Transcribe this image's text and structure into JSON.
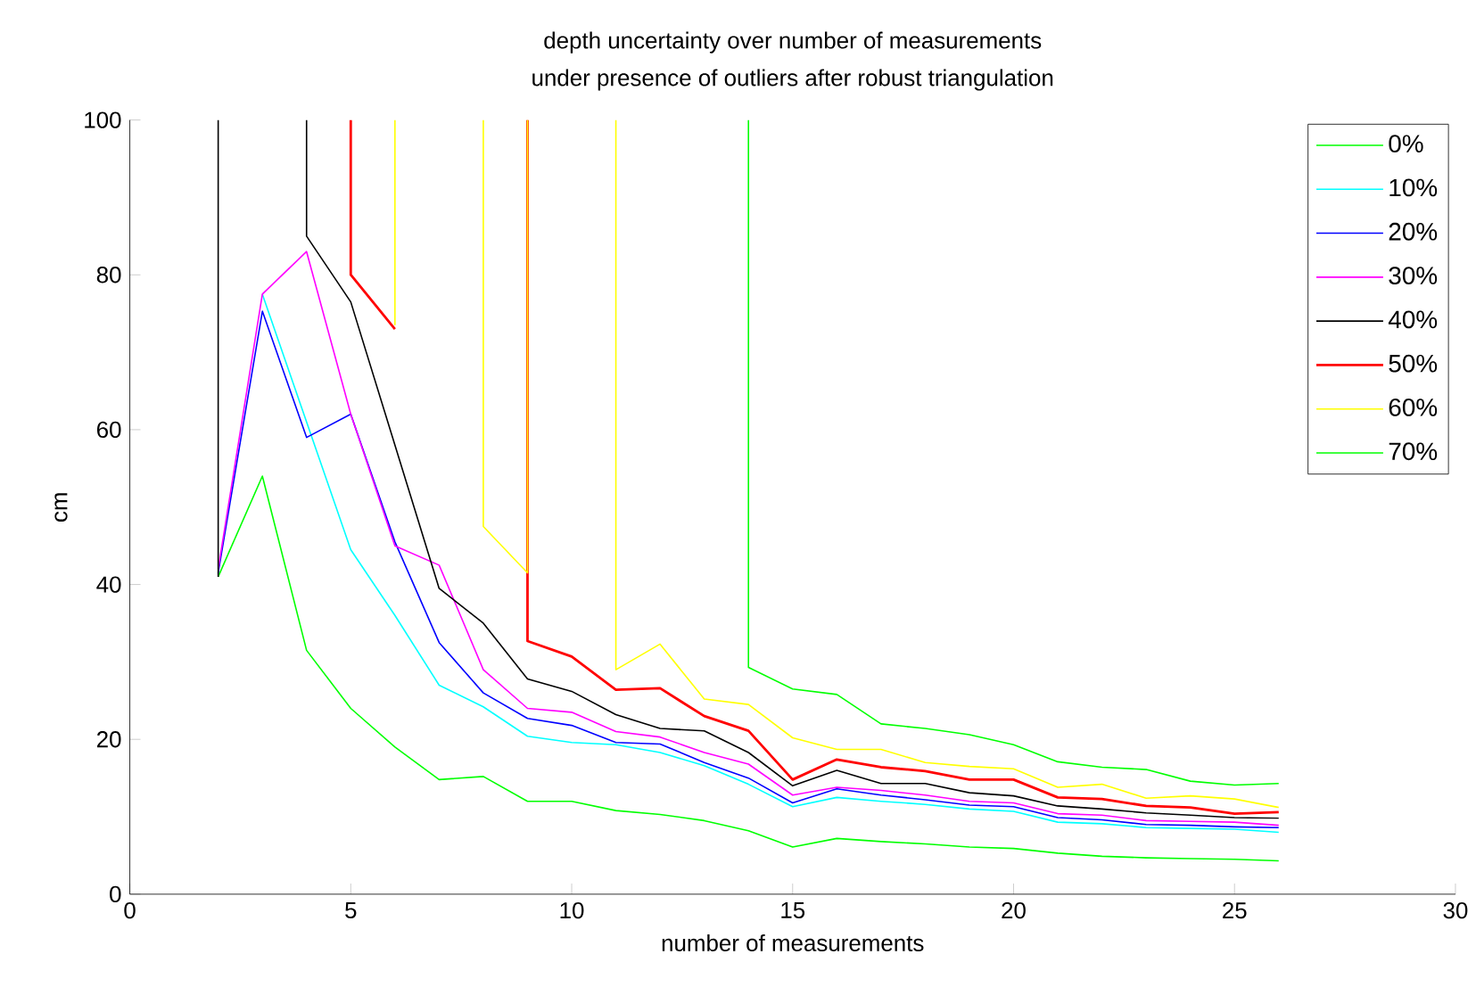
{
  "chart_data": {
    "type": "line",
    "title": "depth uncertainty over number of measurements",
    "subtitle": "under presence of outliers after robust triangulation",
    "xlabel": "number of measurements",
    "ylabel": "cm",
    "xlim": [
      0,
      30
    ],
    "ylim": [
      0,
      100
    ],
    "xticks": [
      0,
      5,
      10,
      15,
      20,
      25,
      30
    ],
    "yticks": [
      0,
      20,
      40,
      60,
      80,
      100
    ],
    "legend": "top right",
    "series": [
      {
        "name": "0%",
        "color": "#00ff00",
        "x": [
          2,
          3,
          4,
          5,
          6,
          7,
          8,
          9,
          10,
          11,
          12,
          13,
          14,
          15,
          16,
          17,
          18,
          19,
          20,
          21,
          22,
          23,
          24,
          25,
          26
        ],
        "values": [
          41,
          54,
          31.5,
          24,
          19,
          14.8,
          15.2,
          12,
          12,
          10.8,
          10.3,
          9.5,
          8.2,
          6.1,
          7.2,
          6.8,
          6.5,
          6.1,
          5.9,
          5.3,
          4.9,
          4.7,
          4.6,
          4.5,
          4.3
        ]
      },
      {
        "name": "10%",
        "color": "#00ffff",
        "x": [
          3,
          4,
          5,
          6,
          7,
          8,
          9,
          10,
          11,
          12,
          13,
          14,
          15,
          16,
          17,
          18,
          19,
          20,
          21,
          22,
          23,
          24,
          25,
          26
        ],
        "values": [
          77.5,
          61,
          44.5,
          36,
          27,
          24.2,
          20.4,
          19.6,
          19.3,
          18.3,
          16.6,
          14.2,
          11.3,
          12.5,
          12,
          11.6,
          11,
          10.7,
          9.3,
          9.1,
          8.6,
          8.5,
          8.4,
          8
        ]
      },
      {
        "name": "20%",
        "color": "#0000ff",
        "x": [
          2,
          3,
          4,
          5,
          6,
          7,
          8,
          9,
          10,
          11,
          12,
          13,
          14,
          15,
          16,
          17,
          18,
          19,
          20,
          21,
          22,
          23,
          24,
          25,
          26
        ],
        "values": [
          41.5,
          75.3,
          59,
          62,
          45.5,
          32.5,
          26,
          22.7,
          21.8,
          19.6,
          19.4,
          17,
          15,
          11.8,
          13.6,
          12.8,
          12.2,
          11.5,
          11.3,
          9.9,
          9.6,
          9,
          8.9,
          8.7,
          8.6
        ]
      },
      {
        "name": "30%",
        "color": "#ff00ff",
        "x": [
          2,
          3,
          4,
          5,
          6,
          7,
          8,
          9,
          10,
          11,
          12,
          13,
          14,
          15,
          16,
          17,
          18,
          19,
          20,
          21,
          22,
          23,
          24,
          25,
          26
        ],
        "values": [
          42,
          77.5,
          83,
          62,
          45,
          42.5,
          29,
          24,
          23.5,
          21,
          20.3,
          18.3,
          16.8,
          12.8,
          13.8,
          13.4,
          12.8,
          12,
          11.8,
          10.4,
          10.2,
          9.5,
          9.4,
          9.3,
          8.9
        ]
      },
      {
        "name": "40%",
        "color": "#000000",
        "x": [
          2,
          2,
          3,
          4,
          4,
          5,
          6,
          7,
          8,
          9,
          10,
          11,
          12,
          13,
          14,
          15,
          16,
          17,
          18,
          19,
          20,
          21,
          22,
          23,
          24,
          25,
          26
        ],
        "values": [
          41,
          100,
          null,
          100,
          85,
          76.5,
          58,
          39.5,
          35,
          27.8,
          26.2,
          23.2,
          21.4,
          21.1,
          18.3,
          14,
          16,
          14.3,
          14.3,
          13.1,
          12.7,
          11.4,
          11,
          10.5,
          10.2,
          9.9,
          9.8
        ]
      },
      {
        "name": "50%",
        "color": "#ff0000",
        "x": [
          5,
          5,
          6,
          7,
          9,
          9,
          10,
          11,
          12,
          13,
          14,
          15,
          16,
          17,
          18,
          19,
          20,
          21,
          22,
          23,
          24,
          25,
          26
        ],
        "values": [
          100,
          80,
          73,
          null,
          100,
          32.7,
          30.7,
          26.4,
          26.6,
          23,
          21.1,
          14.8,
          17.4,
          16.4,
          15.9,
          14.8,
          14.8,
          12.5,
          12.3,
          11.4,
          11.2,
          10.4,
          10.6
        ]
      },
      {
        "name": "60%",
        "color": "#ffff00",
        "x": [
          6,
          6,
          7,
          8,
          8,
          9,
          9,
          10,
          11,
          11,
          12,
          13,
          14,
          15,
          16,
          17,
          18,
          19,
          20,
          21,
          22,
          23,
          24,
          25,
          26
        ],
        "values": [
          100,
          73.5,
          null,
          100,
          47.5,
          41.5,
          100,
          null,
          100,
          29,
          32.3,
          25.2,
          24.5,
          20.2,
          18.7,
          18.7,
          17,
          16.5,
          16.2,
          13.8,
          14.2,
          12.4,
          12.7,
          12.3,
          11.2
        ]
      },
      {
        "name": "70%",
        "color": "#00ff00",
        "x": [
          14,
          14,
          15,
          16,
          17,
          18,
          19,
          20,
          21,
          22,
          23,
          24,
          25,
          26
        ],
        "values": [
          100,
          29.3,
          26.5,
          25.8,
          22,
          21.4,
          20.6,
          19.3,
          17.1,
          16.4,
          16.1,
          14.6,
          14.1,
          14.3
        ]
      }
    ]
  }
}
